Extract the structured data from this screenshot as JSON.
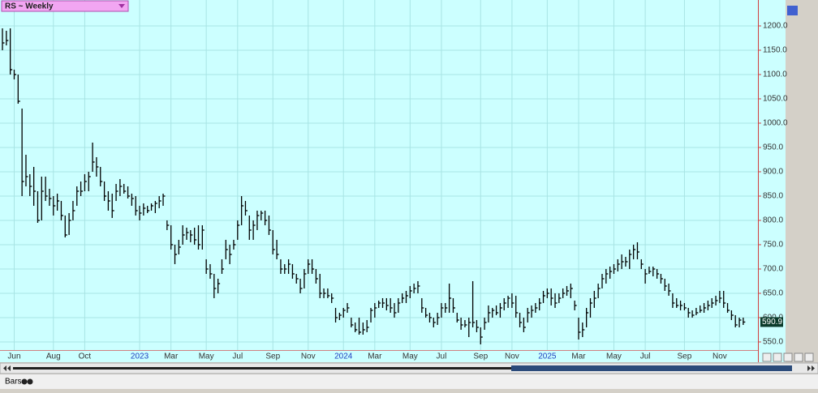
{
  "chart_data": {
    "type": "ohlc",
    "title": "RS ~ Weekly",
    "color": "#000000",
    "grid": true,
    "categories": [
      null,
      null,
      null,
      "Jun",
      null,
      null,
      null,
      null,
      null,
      null,
      null,
      null,
      null,
      "Aug",
      null,
      null,
      null,
      null,
      null,
      null,
      null,
      "Oct",
      null,
      null,
      null,
      null,
      null,
      null,
      null,
      null,
      null,
      null,
      null,
      null,
      null,
      "2023",
      null,
      null,
      null,
      null,
      null,
      null,
      null,
      "Mar",
      null,
      null,
      null,
      null,
      null,
      null,
      null,
      null,
      "May",
      null,
      null,
      null,
      null,
      null,
      null,
      null,
      "Jul",
      null,
      null,
      null,
      null,
      null,
      null,
      null,
      null,
      "Sep",
      null,
      null,
      null,
      null,
      null,
      null,
      null,
      null,
      "Nov",
      null,
      null,
      null,
      null,
      null,
      null,
      null,
      null,
      "2024",
      null,
      null,
      null,
      null,
      null,
      null,
      null,
      "Mar",
      null,
      null,
      null,
      null,
      null,
      null,
      null,
      null,
      "May",
      null,
      null,
      null,
      null,
      null,
      null,
      null,
      "Jul",
      null,
      null,
      null,
      null,
      null,
      null,
      null,
      null,
      null,
      "Sep",
      null,
      null,
      null,
      null,
      null,
      null,
      null,
      "Nov",
      null,
      null,
      null,
      null,
      null,
      null,
      null,
      null,
      "2025",
      null,
      null,
      null,
      null,
      null,
      null,
      null,
      "Mar",
      null,
      null,
      null,
      null,
      null,
      null,
      null,
      null,
      "May",
      null,
      null,
      null,
      null,
      null,
      null,
      null,
      "Jul",
      null,
      null,
      null,
      null,
      null,
      null,
      null,
      null,
      null,
      "Sep",
      null,
      null,
      null,
      null,
      null,
      null,
      null,
      null,
      "Nov",
      null,
      null,
      null,
      null,
      null,
      null
    ],
    "high": [
      1195,
      1190,
      1195,
      1110,
      1100,
      1030,
      935,
      895,
      910,
      860,
      890,
      890,
      865,
      850,
      855,
      840,
      810,
      815,
      840,
      870,
      880,
      895,
      900,
      960,
      930,
      910,
      880,
      860,
      855,
      875,
      885,
      875,
      870,
      855,
      850,
      830,
      835,
      830,
      835,
      840,
      850,
      855,
      800,
      790,
      750,
      760,
      790,
      785,
      780,
      785,
      790,
      790,
      720,
      710,
      690,
      680,
      720,
      760,
      750,
      760,
      800,
      850,
      840,
      810,
      800,
      820,
      820,
      820,
      810,
      780,
      760,
      720,
      710,
      720,
      710,
      690,
      680,
      700,
      720,
      720,
      700,
      690,
      660,
      660,
      650,
      620,
      610,
      620,
      630,
      600,
      590,
      600,
      590,
      595,
      620,
      630,
      635,
      640,
      640,
      640,
      630,
      640,
      650,
      655,
      665,
      670,
      675,
      640,
      620,
      610,
      600,
      610,
      630,
      630,
      670,
      640,
      610,
      600,
      595,
      600,
      675,
      595,
      580,
      600,
      625,
      620,
      625,
      630,
      640,
      645,
      650,
      645,
      610,
      600,
      620,
      625,
      630,
      640,
      655,
      660,
      660,
      650,
      650,
      660,
      665,
      670,
      635,
      600,
      590,
      620,
      640,
      655,
      670,
      690,
      700,
      705,
      710,
      720,
      730,
      725,
      740,
      750,
      755,
      720,
      700,
      705,
      705,
      700,
      690,
      680,
      670,
      650,
      640,
      635,
      630,
      620,
      615,
      620,
      625,
      630,
      635,
      640,
      645,
      655,
      655,
      630,
      615,
      605,
      600,
      600
    ],
    "low": [
      1150,
      1160,
      1100,
      1090,
      1040,
      850,
      870,
      850,
      830,
      795,
      800,
      840,
      830,
      810,
      820,
      800,
      765,
      770,
      800,
      830,
      850,
      860,
      860,
      900,
      890,
      870,
      840,
      820,
      805,
      840,
      850,
      855,
      845,
      830,
      810,
      800,
      810,
      815,
      820,
      815,
      825,
      830,
      780,
      740,
      710,
      730,
      750,
      760,
      755,
      750,
      740,
      740,
      690,
      680,
      640,
      650,
      690,
      720,
      710,
      740,
      760,
      790,
      810,
      760,
      760,
      780,
      800,
      790,
      770,
      730,
      720,
      690,
      690,
      690,
      680,
      670,
      650,
      660,
      690,
      690,
      670,
      640,
      640,
      640,
      630,
      590,
      595,
      600,
      610,
      580,
      570,
      565,
      565,
      570,
      590,
      600,
      620,
      620,
      615,
      610,
      600,
      610,
      630,
      630,
      640,
      650,
      650,
      610,
      600,
      590,
      580,
      585,
      600,
      610,
      610,
      610,
      590,
      575,
      580,
      560,
      580,
      570,
      545,
      575,
      590,
      600,
      605,
      600,
      615,
      620,
      620,
      600,
      580,
      570,
      590,
      600,
      610,
      615,
      630,
      640,
      625,
      620,
      630,
      640,
      645,
      640,
      615,
      555,
      560,
      580,
      600,
      620,
      640,
      660,
      670,
      680,
      690,
      695,
      700,
      705,
      700,
      720,
      720,
      700,
      670,
      690,
      685,
      680,
      670,
      655,
      645,
      620,
      620,
      615,
      615,
      600,
      600,
      605,
      610,
      610,
      615,
      620,
      625,
      630,
      620,
      610,
      595,
      580,
      580,
      585
    ],
    "close": [
      1165,
      1170,
      1110,
      1100,
      1045,
      880,
      890,
      870,
      860,
      800,
      860,
      850,
      845,
      830,
      840,
      810,
      770,
      800,
      820,
      860,
      860,
      880,
      890,
      920,
      910,
      880,
      850,
      840,
      820,
      860,
      870,
      860,
      850,
      845,
      820,
      815,
      825,
      820,
      830,
      835,
      840,
      850,
      790,
      750,
      730,
      745,
      770,
      775,
      770,
      760,
      750,
      780,
      700,
      690,
      660,
      670,
      700,
      740,
      730,
      750,
      790,
      830,
      820,
      780,
      790,
      810,
      815,
      800,
      780,
      740,
      730,
      700,
      700,
      710,
      690,
      680,
      660,
      690,
      710,
      700,
      680,
      650,
      650,
      645,
      640,
      600,
      605,
      615,
      620,
      585,
      575,
      570,
      575,
      580,
      615,
      620,
      630,
      630,
      625,
      620,
      610,
      630,
      640,
      645,
      655,
      660,
      665,
      620,
      605,
      600,
      590,
      600,
      620,
      620,
      640,
      620,
      595,
      585,
      585,
      590,
      590,
      580,
      560,
      590,
      610,
      615,
      610,
      620,
      630,
      640,
      630,
      610,
      590,
      580,
      610,
      615,
      620,
      630,
      645,
      650,
      640,
      630,
      640,
      650,
      655,
      660,
      625,
      570,
      575,
      610,
      630,
      640,
      660,
      680,
      690,
      695,
      700,
      710,
      715,
      715,
      730,
      740,
      735,
      710,
      690,
      695,
      700,
      690,
      680,
      665,
      655,
      630,
      625,
      625,
      620,
      610,
      605,
      610,
      615,
      620,
      625,
      630,
      635,
      640,
      630,
      615,
      605,
      585,
      595,
      590.9
    ],
    "ylim": [
      533.3,
      1253.3
    ],
    "yticks": [
      {
        "value": 550,
        "label": "550.0"
      },
      {
        "value": 600,
        "label": "600.0"
      },
      {
        "value": 650,
        "label": "650.0"
      },
      {
        "value": 700,
        "label": "700.0"
      },
      {
        "value": 750,
        "label": "750.0"
      },
      {
        "value": 800,
        "label": "800.0"
      },
      {
        "value": 850,
        "label": "850.0"
      },
      {
        "value": 900,
        "label": "900.0"
      },
      {
        "value": 950,
        "label": "950.0"
      },
      {
        "value": 1000,
        "label": "1000.0"
      },
      {
        "value": 1050,
        "label": "1050.0"
      },
      {
        "value": 1100,
        "label": "1100.0"
      },
      {
        "value": 1150,
        "label": "1150.0"
      },
      {
        "value": 1200,
        "label": "1200.0"
      }
    ]
  },
  "status_bar": {
    "label": "Bars"
  }
}
